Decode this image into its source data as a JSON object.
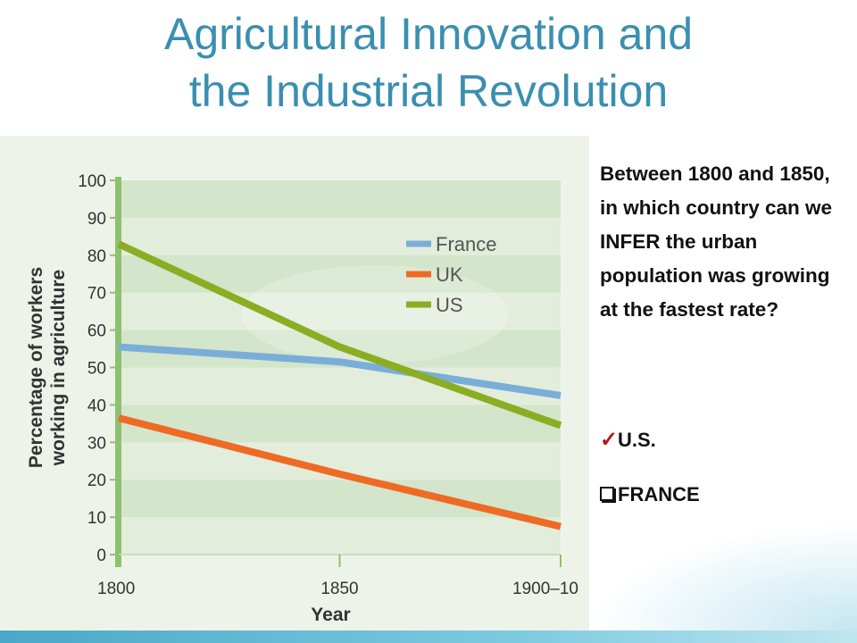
{
  "title": {
    "line1": "Agricultural Innovation and",
    "line2": "the Industrial Revolution"
  },
  "question": {
    "text": "Between 1800 and 1850, in which country can we INFER the urban population was growing at the fastest rate?"
  },
  "answers": [
    {
      "label": "U.S.",
      "marker": "checkmark-icon",
      "marker_color": "#b01818"
    },
    {
      "label": "FRANCE",
      "marker": "checkbox-icon"
    }
  ],
  "chart_data": {
    "type": "line",
    "xlabel": "Year",
    "ylabel": "Percentage of workers working in agriculture",
    "x_ticks": [
      "1800",
      "1850",
      "1900–10"
    ],
    "y_ticks": [
      "0",
      "10",
      "20",
      "30",
      "40",
      "50",
      "60",
      "70",
      "80",
      "90",
      "100"
    ],
    "ylim": [
      0,
      100
    ],
    "grid": "horizontal bands",
    "legend_position": "top-right",
    "series": [
      {
        "name": "France",
        "color": "#7aaed8",
        "values": [
          55.5,
          51.5,
          42.5
        ]
      },
      {
        "name": "UK",
        "color": "#ef6a25",
        "values": [
          36.5,
          21.5,
          7.5
        ]
      },
      {
        "name": "US",
        "color": "#8aad23",
        "values": [
          83,
          55.5,
          34.5
        ]
      }
    ]
  }
}
